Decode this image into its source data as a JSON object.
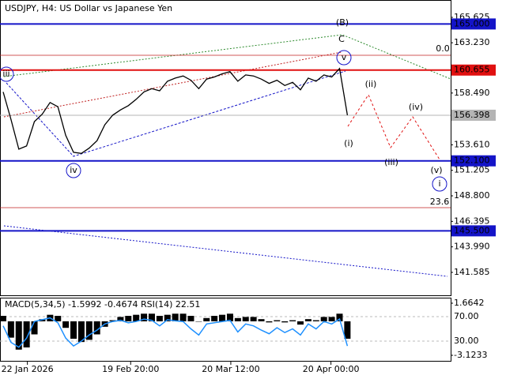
{
  "chart_data": [
    {
      "type": "line",
      "title": "USDJPY, H4:  US Dollar vs Japanese Yen",
      "series": [
        {
          "name": "USDJPY",
          "color": "#000000",
          "values": [
            158.6,
            156.0,
            153.2,
            153.5,
            155.8,
            156.5,
            157.6,
            157.2,
            154.5,
            152.9,
            152.8,
            153.3,
            154.0,
            155.5,
            156.4,
            156.9,
            157.3,
            157.9,
            158.6,
            158.9,
            158.7,
            159.6,
            159.9,
            160.1,
            159.7,
            158.9,
            159.8,
            160.0,
            160.3,
            160.5,
            159.6,
            160.2,
            160.1,
            159.8,
            159.4,
            159.7,
            159.2,
            159.5,
            158.8,
            159.9,
            159.6,
            160.2,
            160.0,
            160.8,
            156.4
          ]
        }
      ],
      "xlim": [
        -0.4,
        57.2
      ],
      "xticks": [
        {
          "value": 3.1,
          "label": "22 Jan 2026"
        },
        {
          "value": 16.3,
          "label": "19 Feb 20:00"
        },
        {
          "value": 29.1,
          "label": "20 Mar 12:00"
        },
        {
          "value": 41.9,
          "label": "20 Apr 00:00"
        }
      ],
      "ylim": [
        139.35,
        167.26
      ],
      "yticks": [
        165.625,
        {
          "value": 163.23,
          "label": "163.230"
        },
        {
          "value": 158.49,
          "label": "158.490"
        },
        {
          "value": 153.61,
          "label": "153.610"
        },
        151.205,
        {
          "value": 148.8,
          "label": "148.800"
        },
        146.395,
        {
          "value": 143.99,
          "label": "143.990"
        },
        141.585
      ],
      "levels": [
        {
          "value": 165,
          "label": "165.000",
          "color": "#1414c8"
        },
        {
          "value": 160.655,
          "label": "160.655",
          "color": "#e01010"
        },
        {
          "value": 156.398,
          "label": "156.398",
          "color": "#b4b4b4"
        },
        {
          "value": 152.1,
          "label": "152.100",
          "color": "#1414c8"
        },
        {
          "value": 145.5,
          "label": "145.500",
          "color": "#1414c8"
        }
      ],
      "annotations": [
        "(B)",
        "C",
        "v",
        "iii",
        "iv",
        "(i)",
        "(ii)",
        "(iii)",
        "(iv)",
        "(v)",
        "i",
        "0.0",
        "23.6"
      ]
    },
    {
      "type": "macd",
      "title": "MACD(5,34,5) -1.5992 -0.4674 RSI(14) 22.51",
      "series": [
        {
          "name": "MACD",
          "color": "#000000",
          "values": [
            0.5,
            -1.5,
            -2.6,
            -2.4,
            -1.2,
            0.2,
            0.6,
            0.5,
            -0.6,
            -1.6,
            -1.9,
            -1.7,
            -1.2,
            -0.5,
            0.1,
            0.4,
            0.5,
            0.6,
            0.7,
            0.7,
            0.5,
            0.6,
            0.7,
            0.7,
            0.5,
            0.0,
            0.3,
            0.5,
            0.6,
            0.7,
            0.3,
            0.4,
            0.4,
            0.2,
            -0.1,
            0.1,
            -0.1,
            0.1,
            -0.3,
            0.2,
            0.1,
            0.4,
            0.4,
            0.7,
            -1.6
          ]
        },
        {
          "name": "RSI(14)",
          "color": "#1e90ff",
          "axis": "y2",
          "values": [
            55,
            28,
            20,
            35,
            62,
            65,
            68,
            60,
            35,
            22,
            30,
            40,
            48,
            58,
            62,
            64,
            60,
            62,
            66,
            64,
            55,
            65,
            63,
            62,
            50,
            40,
            58,
            60,
            62,
            64,
            45,
            58,
            55,
            48,
            42,
            52,
            44,
            50,
            40,
            58,
            50,
            62,
            58,
            66,
            22
          ]
        }
      ],
      "ylim": [
        -3.703,
        2.099
      ],
      "yticks": [
        1.6642,
        -3.1233
      ],
      "y2lim": [
        -3.5,
        99.7
      ],
      "y2ticks": [
        {
          "value": 70,
          "label": "70.00"
        },
        {
          "value": 30,
          "label": "30.00"
        }
      ]
    }
  ]
}
